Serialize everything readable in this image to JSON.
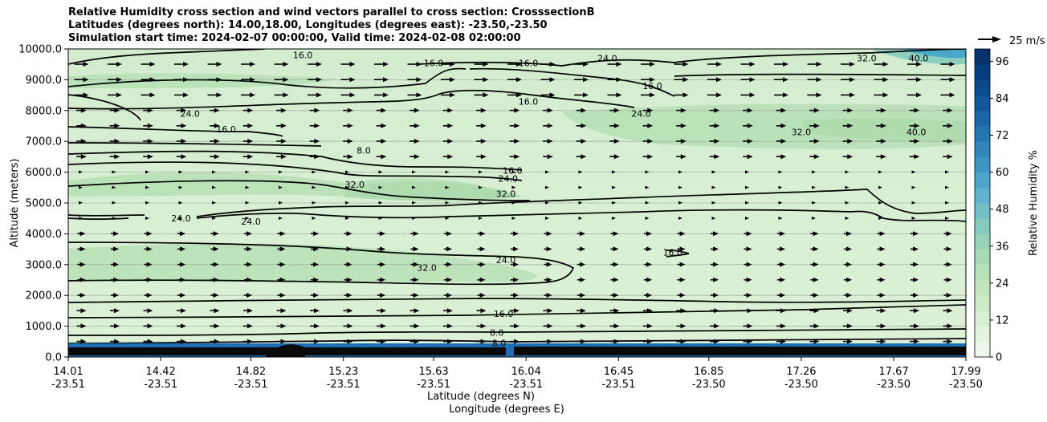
{
  "chart_data": {
    "type": "contour",
    "title_lines": [
      "Relative Humidity cross section and wind vectors parallel to cross section: CrosssectionB",
      "Latitudes (degrees north): 14.00,18.00, Longitudes (degrees east): -23.50,-23.50",
      "Simulation start time: 2024-02-07 00:00:00, Valid time: 2024-02-08 02:00:00"
    ],
    "ylabel": "Altitude (meters)",
    "xlabel_lat": "Latitude (degrees N)",
    "xlabel_lon": "Longitude (degrees E)",
    "ylim": [
      0,
      10000
    ],
    "y_ticks": [
      "0.0",
      "1000.0",
      "2000.0",
      "3000.0",
      "4000.0",
      "5000.0",
      "6000.0",
      "7000.0",
      "8000.0",
      "9000.0",
      "10000.0"
    ],
    "x_ticks": [
      {
        "lat": "14.01",
        "lon": "-23.51"
      },
      {
        "lat": "14.42",
        "lon": "-23.51"
      },
      {
        "lat": "14.82",
        "lon": "-23.51"
      },
      {
        "lat": "15.23",
        "lon": "-23.51"
      },
      {
        "lat": "15.63",
        "lon": "-23.51"
      },
      {
        "lat": "16.04",
        "lon": "-23.51"
      },
      {
        "lat": "16.45",
        "lon": "-23.51"
      },
      {
        "lat": "16.85",
        "lon": "-23.50"
      },
      {
        "lat": "17.26",
        "lon": "-23.50"
      },
      {
        "lat": "17.67",
        "lon": "-23.50"
      },
      {
        "lat": "17.99",
        "lon": "-23.50"
      }
    ],
    "grid": "horizontal",
    "colorbar": {
      "label": "Relative Humidity %",
      "range": [
        0,
        100
      ],
      "ticks": [
        "0",
        "12",
        "24",
        "36",
        "48",
        "60",
        "72",
        "84",
        "96"
      ]
    },
    "quiver_key": "25 m/s",
    "contours": [
      {
        "label": "16.0",
        "lat": 16.05,
        "alt": 9550
      },
      {
        "label": "16.0",
        "lat": 15.05,
        "alt": 9800
      },
      {
        "label": "16.0",
        "lat": 15.63,
        "alt": 9550
      },
      {
        "label": "24.0",
        "lat": 16.4,
        "alt": 9700
      },
      {
        "label": "32.0",
        "lat": 17.55,
        "alt": 9700
      },
      {
        "label": "40.0",
        "lat": 17.78,
        "alt": 9700
      },
      {
        "label": "16.0",
        "lat": 16.6,
        "alt": 8800
      },
      {
        "label": "16.0",
        "lat": 16.05,
        "alt": 8300
      },
      {
        "label": "24.0",
        "lat": 16.55,
        "alt": 7900
      },
      {
        "label": "32.0",
        "lat": 17.26,
        "alt": 7300
      },
      {
        "label": "40.0",
        "lat": 17.77,
        "alt": 7300
      },
      {
        "label": "24.0",
        "lat": 14.55,
        "alt": 7900
      },
      {
        "label": "16.0",
        "lat": 14.71,
        "alt": 7400
      },
      {
        "label": "8.0",
        "lat": 15.32,
        "alt": 6700
      },
      {
        "label": "32.0",
        "lat": 15.28,
        "alt": 5600
      },
      {
        "label": "16.0",
        "lat": 15.98,
        "alt": 6050
      },
      {
        "label": "24.0",
        "lat": 15.96,
        "alt": 5800
      },
      {
        "label": "32.0",
        "lat": 15.95,
        "alt": 5300
      },
      {
        "label": "24.0",
        "lat": 14.82,
        "alt": 4400
      },
      {
        "label": "24.0",
        "lat": 14.51,
        "alt": 4500
      },
      {
        "label": "32.0",
        "lat": 15.6,
        "alt": 2900
      },
      {
        "label": "24.0",
        "lat": 15.95,
        "alt": 3150
      },
      {
        "label": "16.0",
        "lat": 16.69,
        "alt": 3400
      },
      {
        "label": "16.0",
        "lat": 15.94,
        "alt": 1400
      },
      {
        "label": "8.0",
        "lat": 15.91,
        "alt": 800
      },
      {
        "label": "8.0",
        "lat": 15.92,
        "alt": 450
      }
    ]
  }
}
